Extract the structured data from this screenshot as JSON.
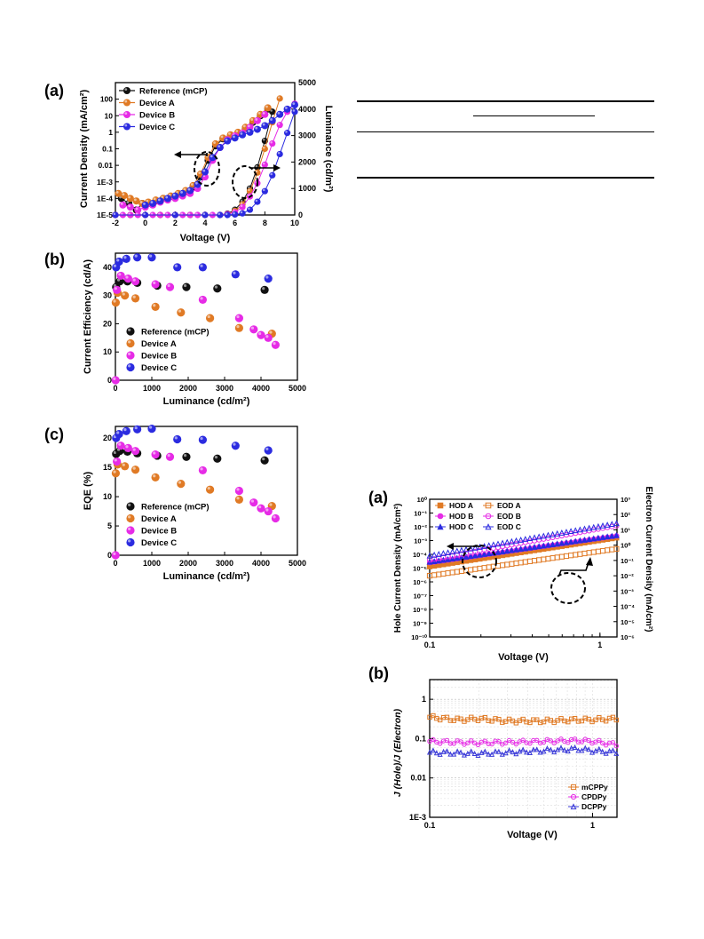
{
  "panel_labels": {
    "a1": "(a)",
    "b1": "(b)",
    "c1": "(c)",
    "a2": "(a)",
    "b2": "(b)"
  },
  "colors": {
    "reference": "#111111",
    "deviceA": "#e07a25",
    "deviceB": "#e62be6",
    "deviceC": "#2b2be0",
    "mcppy": "#e07a25",
    "cpdpy": "#e62be6",
    "dcppy": "#3a3ad8"
  },
  "chart_data": [
    {
      "id": "jvl",
      "type": "line",
      "xlabel": "Voltage (V)",
      "ylabel": "Current Density (mA/cm²)",
      "y2label": "Luminance (cd/m²)",
      "xlim": [
        -2,
        10
      ],
      "xticks": [
        "-2",
        "0",
        "2",
        "4",
        "6",
        "8",
        "10"
      ],
      "ylim_log": [
        -5,
        3
      ],
      "yticks": [
        "1E-5",
        "1E-4",
        "1E-3",
        "0.01",
        "0.1",
        "1",
        "10",
        "100"
      ],
      "y2lim": [
        0,
        5000
      ],
      "y2ticks": [
        "0",
        "1000",
        "2000",
        "3000",
        "4000",
        "5000"
      ],
      "legend": [
        "Reference (mCP)",
        "Device A",
        "Device B",
        "Device C"
      ],
      "series": [
        {
          "name": "Reference (mCP)",
          "color_key": "reference",
          "current_x": [
            -1.6,
            -1.1,
            -0.6,
            -0.2,
            0.2,
            0.7,
            1.2,
            1.7,
            2.2,
            2.7,
            3.2,
            3.7,
            4.2,
            4.7,
            5.2,
            5.7,
            6.2,
            6.7,
            7.2,
            7.7,
            8.2
          ],
          "current_y": [
            0.0001,
            5e-05,
            2e-05,
            5e-05,
            5e-05,
            7e-05,
            0.0001,
            0.00013,
            0.00018,
            0.00025,
            0.0005,
            0.002,
            0.02,
            0.15,
            0.4,
            0.6,
            0.9,
            1.8,
            4,
            10,
            25
          ],
          "lum_x": [
            -2,
            -1,
            0,
            1,
            2,
            3,
            4,
            5,
            5.5,
            6,
            6.5,
            7,
            7.5,
            8,
            8.5
          ],
          "lum_y": [
            0,
            0,
            0,
            0,
            0,
            0,
            0,
            0,
            50,
            200,
            500,
            1000,
            1800,
            2800,
            3900
          ]
        },
        {
          "name": "Device A",
          "color_key": "deviceA",
          "current_x": [
            -1.8,
            -1.4,
            -1,
            -0.6,
            -0.2,
            0.2,
            0.7,
            1.2,
            1.7,
            2.2,
            2.7,
            3.2,
            3.7,
            4.2,
            4.7,
            5.2,
            5.7,
            6.2,
            6.7,
            7.2,
            7.7,
            8.2
          ],
          "current_y": [
            0.0002,
            0.00015,
            0.0001,
            7e-05,
            5e-05,
            6e-05,
            8e-05,
            0.0001,
            0.00014,
            0.0002,
            0.0003,
            0.0006,
            0.003,
            0.03,
            0.2,
            0.45,
            0.7,
            1,
            2,
            5,
            12,
            30
          ],
          "lum_x": [
            -2,
            -1,
            0,
            1,
            2,
            3,
            4,
            5,
            5.5,
            6,
            6.5,
            7,
            7.5,
            8,
            8.5,
            9
          ],
          "lum_y": [
            0,
            0,
            0,
            0,
            0,
            0,
            0,
            0,
            30,
            150,
            400,
            900,
            1600,
            2500,
            3500,
            4400
          ]
        },
        {
          "name": "Device B",
          "color_key": "deviceB",
          "current_x": [
            -1.5,
            -1,
            -0.5,
            0,
            0.5,
            1,
            1.5,
            2,
            2.5,
            3,
            3.5,
            4,
            4.5,
            5,
            5.5,
            6,
            6.5,
            7,
            7.5,
            8
          ],
          "current_y": [
            4e-05,
            3e-05,
            2e-05,
            3e-05,
            4e-05,
            6e-05,
            8e-05,
            0.0001,
            0.00014,
            0.0002,
            0.0004,
            0.002,
            0.02,
            0.12,
            0.35,
            0.6,
            0.9,
            2,
            5,
            12
          ],
          "lum_x": [
            -2,
            -1.5,
            -1,
            -0.5,
            0,
            0.5,
            1,
            1.5,
            2,
            2.5,
            3,
            3.5,
            4,
            4.5,
            5,
            5.5,
            6,
            6.5,
            7,
            7.5,
            8,
            8.5,
            9,
            9.5,
            10
          ],
          "lum_y": [
            0,
            0,
            0,
            0,
            0,
            0,
            0,
            0,
            0,
            0,
            0,
            0,
            0,
            0,
            0,
            30,
            100,
            300,
            700,
            1200,
            1900,
            2700,
            3400,
            3900,
            4200
          ]
        },
        {
          "name": "Device C",
          "color_key": "deviceC",
          "current_x": [
            0,
            0.5,
            1,
            1.5,
            2,
            2.5,
            3,
            3.5,
            4,
            4.5,
            5,
            5.5,
            6,
            6.5,
            7,
            7.5,
            8,
            8.5,
            9,
            9.5,
            10
          ],
          "current_y": [
            4e-05,
            5e-05,
            7e-05,
            0.0001,
            0.00014,
            0.0002,
            0.0003,
            0.0007,
            0.004,
            0.03,
            0.12,
            0.3,
            0.45,
            0.7,
            1,
            1.5,
            2.5,
            5,
            12,
            25,
            45
          ],
          "lum_x": [
            -2,
            0,
            2,
            4,
            5,
            5.5,
            6,
            6.5,
            7,
            7.5,
            8,
            8.5,
            9,
            9.5,
            10
          ],
          "lum_y": [
            0,
            0,
            0,
            0,
            0,
            0,
            20,
            60,
            200,
            500,
            900,
            1500,
            2300,
            3100,
            3900
          ]
        }
      ]
    },
    {
      "id": "ce",
      "type": "scatter",
      "xlabel": "Luminance (cd/m²)",
      "ylabel": "Current Efficiency (cd/A)",
      "xlim": [
        0,
        5000
      ],
      "xticks": [
        "0",
        "1000",
        "2000",
        "3000",
        "4000",
        "5000"
      ],
      "ylim": [
        0,
        45
      ],
      "yticks": [
        "0",
        "10",
        "20",
        "30",
        "40"
      ],
      "legend": [
        "Reference (mCP)",
        "Device A",
        "Device B",
        "Device C"
      ],
      "series": [
        {
          "name": "Reference (mCP)",
          "color_key": "reference",
          "x": [
            20,
            120,
            330,
            600,
            1150,
            1950,
            2800,
            4100
          ],
          "y": [
            33,
            35,
            35,
            34.5,
            33.5,
            33,
            32.5,
            32
          ]
        },
        {
          "name": "Device A",
          "color_key": "deviceA",
          "x": [
            10,
            60,
            260,
            550,
            1100,
            1800,
            2600,
            3400,
            4300
          ],
          "y": [
            27.5,
            31,
            30,
            29,
            26,
            24,
            22,
            18.5,
            16.5
          ]
        },
        {
          "name": "Device B",
          "color_key": "deviceB",
          "x": [
            5,
            40,
            150,
            350,
            550,
            1100,
            1500,
            2400,
            3400,
            3800,
            4000,
            4200,
            4400
          ],
          "y": [
            0,
            32,
            37,
            36,
            35,
            34,
            33,
            28.5,
            22,
            18,
            16,
            15,
            12.5
          ]
        },
        {
          "name": "Device C",
          "color_key": "deviceC",
          "x": [
            20,
            100,
            300,
            600,
            1000,
            1700,
            2400,
            3300,
            4200
          ],
          "y": [
            40,
            42,
            43,
            43.5,
            43.5,
            40,
            40,
            37.5,
            36
          ]
        }
      ]
    },
    {
      "id": "eqe",
      "type": "scatter",
      "xlabel": "Luminance (cd/m²)",
      "ylabel": "EQE (%)",
      "xlim": [
        0,
        5000
      ],
      "xticks": [
        "0",
        "1000",
        "2000",
        "3000",
        "4000",
        "5000"
      ],
      "ylim": [
        0,
        22
      ],
      "yticks": [
        "0",
        "5",
        "10",
        "15",
        "20"
      ],
      "legend": [
        "Reference (mCP)",
        "Device A",
        "Device B",
        "Device C"
      ],
      "series": [
        {
          "name": "Reference (mCP)",
          "color_key": "reference",
          "x": [
            20,
            120,
            330,
            600,
            1150,
            1950,
            2800,
            4100
          ],
          "y": [
            17.3,
            17.8,
            17.7,
            17.4,
            17,
            16.8,
            16.5,
            16.2
          ]
        },
        {
          "name": "Device A",
          "color_key": "deviceA",
          "x": [
            10,
            60,
            260,
            550,
            1100,
            1800,
            2600,
            3400,
            4300
          ],
          "y": [
            14,
            15.5,
            15.2,
            14.6,
            13.3,
            12.2,
            11.2,
            9.5,
            8.4
          ]
        },
        {
          "name": "Device B",
          "color_key": "deviceB",
          "x": [
            5,
            40,
            150,
            350,
            550,
            1100,
            1500,
            2400,
            3400,
            3800,
            4000,
            4200,
            4400
          ],
          "y": [
            0,
            16,
            18.7,
            18.3,
            17.8,
            17.2,
            16.8,
            14.5,
            11,
            9,
            8,
            7.5,
            6.3
          ]
        },
        {
          "name": "Device C",
          "color_key": "deviceC",
          "x": [
            20,
            100,
            300,
            600,
            1000,
            1700,
            2400,
            3300,
            4200
          ],
          "y": [
            20,
            20.7,
            21.2,
            21.5,
            21.6,
            19.8,
            19.7,
            18.7,
            17.9
          ]
        }
      ]
    },
    {
      "id": "hod_eod",
      "type": "scatter",
      "xlabel": "Voltage (V)",
      "ylabel": "Hole Current Density (mA/cm²)",
      "y2label": "Electron Current Density (mA/cm²)",
      "xlim_log": [
        -1,
        0.1
      ],
      "xticks": [
        "0.1",
        "1"
      ],
      "ylim_log": [
        -10,
        0
      ],
      "yticks": [
        "10⁰",
        "10⁻¹",
        "10⁻²",
        "10⁻³",
        "10⁻⁴",
        "10⁻⁵",
        "10⁻⁶",
        "10⁻⁷",
        "10⁻⁸",
        "10⁻⁹",
        "10⁻¹⁰"
      ],
      "y2lim_log": [
        -6,
        3
      ],
      "y2ticks": [
        "10³",
        "10²",
        "10¹",
        "10⁰",
        "10⁻¹",
        "10⁻²",
        "10⁻³",
        "10⁻⁴",
        "10⁻⁵",
        "10⁻⁶"
      ],
      "legend": [
        "HOD A",
        "EOD A",
        "HOD B",
        "EOD B",
        "HOD C",
        "EOD C"
      ],
      "series": [
        {
          "name": "HOD A",
          "color_key": "deviceA",
          "marker": "square-filled",
          "x": [
            0.1,
            1.25
          ],
          "y": [
            1.3e-05,
            0.0016
          ]
        },
        {
          "name": "HOD B",
          "color_key": "deviceB",
          "marker": "circle-filled",
          "x": [
            0.1,
            1.25
          ],
          "y": [
            2.5e-05,
            0.0022
          ]
        },
        {
          "name": "HOD C",
          "color_key": "deviceC",
          "marker": "triangle-filled",
          "x": [
            0.1,
            1.25
          ],
          "y": [
            2.8e-05,
            0.0024
          ]
        },
        {
          "name": "EOD A",
          "color_key": "deviceA",
          "marker": "square-open",
          "x": [
            0.1,
            1.25
          ],
          "y": [
            2.8e-06,
            0.00025
          ]
        },
        {
          "name": "EOD B",
          "color_key": "deviceB",
          "marker": "circle-open",
          "x": [
            0.1,
            1.25
          ],
          "y": [
            4e-05,
            0.012
          ]
        },
        {
          "name": "EOD C",
          "color_key": "deviceC",
          "marker": "triangle-open",
          "x": [
            0.1,
            1.25
          ],
          "y": [
            8e-05,
            0.018
          ]
        }
      ]
    },
    {
      "id": "ratio",
      "type": "scatter",
      "xlabel": "Voltage (V)",
      "ylabel": "J (Hole)/J (Electron)",
      "xlim_log": [
        -1,
        0.15
      ],
      "xticks": [
        "0.1",
        "1"
      ],
      "ylim_log": [
        -3,
        0.5
      ],
      "yticks": [
        "1",
        "0.1",
        "0.01",
        "1E-3"
      ],
      "legend": [
        "mCPPy",
        "CPDPy",
        "DCPPy"
      ],
      "series": [
        {
          "name": "mCPPy",
          "color_key": "mcppy",
          "marker": "square-open",
          "x": [
            0.1,
            0.15,
            0.2,
            0.3,
            0.5,
            0.8,
            1.0,
            1.4
          ],
          "y": [
            0.35,
            0.3,
            0.32,
            0.28,
            0.28,
            0.3,
            0.3,
            0.32
          ]
        },
        {
          "name": "CPDPy",
          "color_key": "cpdpy",
          "marker": "circle-open",
          "x": [
            0.1,
            0.15,
            0.2,
            0.3,
            0.5,
            0.8,
            1.0,
            1.4
          ],
          "y": [
            0.085,
            0.08,
            0.078,
            0.08,
            0.085,
            0.09,
            0.085,
            0.07
          ]
        },
        {
          "name": "DCPPy",
          "color_key": "dcppy",
          "marker": "triangle-open",
          "x": [
            0.1,
            0.15,
            0.2,
            0.3,
            0.5,
            0.8,
            1.0,
            1.4
          ],
          "y": [
            0.045,
            0.043,
            0.042,
            0.045,
            0.05,
            0.055,
            0.05,
            0.045
          ]
        }
      ]
    }
  ]
}
